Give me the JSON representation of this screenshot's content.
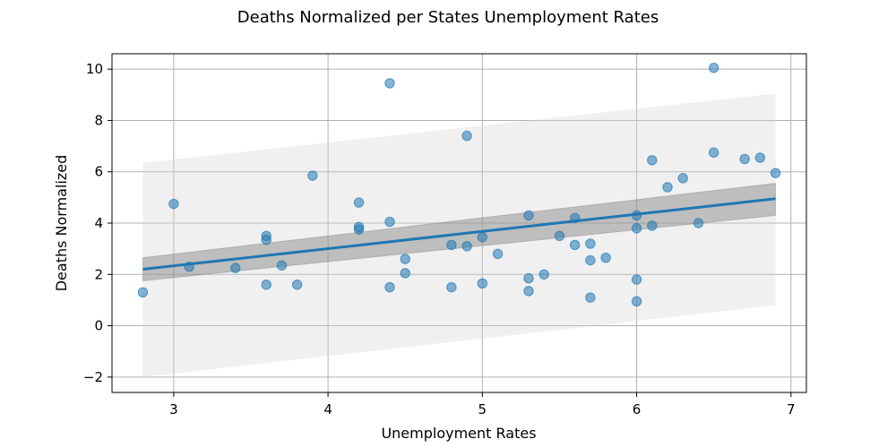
{
  "chart_data": {
    "type": "scatter",
    "title": "Deaths Normalized per States Unemployment Rates",
    "xlabel": "Unemployment Rates",
    "ylabel": "Deaths Normalized",
    "xlim": [
      2.6,
      7.1
    ],
    "ylim": [
      -2.6,
      10.6
    ],
    "xticks": [
      3,
      4,
      5,
      6,
      7
    ],
    "yticks": [
      -2,
      0,
      2,
      4,
      6,
      8,
      10
    ],
    "grid": true,
    "colors": {
      "points": "#1f77b4",
      "regression_line": "#1f77b4",
      "confidence_band": "#808080",
      "prediction_band": "#d3d3d3",
      "grid": "#b0b0b0"
    },
    "series": [
      {
        "x": [
          2.8,
          3.0,
          3.1,
          3.4,
          3.6,
          3.6,
          3.6,
          3.7,
          3.8,
          3.9,
          4.2,
          4.2,
          4.2,
          4.4,
          4.4,
          4.4,
          4.5,
          4.5,
          4.8,
          4.8,
          4.9,
          4.9,
          5.0,
          5.0,
          5.1,
          5.3,
          5.3,
          5.3,
          5.4,
          5.5,
          5.6,
          5.6,
          5.7,
          5.7,
          5.7,
          5.8,
          6.0,
          6.0,
          6.0,
          6.0,
          6.1,
          6.1,
          6.2,
          6.3,
          6.4,
          6.5,
          6.5,
          6.7,
          6.8,
          6.9
        ],
        "y": [
          1.3,
          4.75,
          2.3,
          2.25,
          3.5,
          3.35,
          1.6,
          2.35,
          1.6,
          5.85,
          4.8,
          3.85,
          3.75,
          9.45,
          4.05,
          1.5,
          2.6,
          2.05,
          3.15,
          1.5,
          7.4,
          3.1,
          3.45,
          1.65,
          2.8,
          4.3,
          1.85,
          1.35,
          2.0,
          3.5,
          4.2,
          3.15,
          3.2,
          2.55,
          1.1,
          2.65,
          4.3,
          3.8,
          1.8,
          0.95,
          6.45,
          3.9,
          5.4,
          5.75,
          4.0,
          10.05,
          6.75,
          6.5,
          6.55,
          5.95
        ]
      }
    ],
    "regression": {
      "x": [
        2.8,
        6.9
      ],
      "y": [
        2.2,
        4.95
      ],
      "ci_lower": [
        1.75,
        4.3
      ],
      "ci_upper": [
        2.65,
        5.55
      ],
      "pi_lower": [
        -2.0,
        0.8
      ],
      "pi_upper": [
        6.35,
        9.05
      ]
    }
  }
}
